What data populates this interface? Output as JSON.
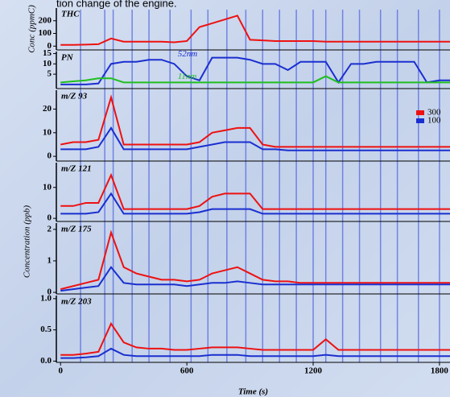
{
  "caption": "tion change of the engine.",
  "ylabel": "Concentration (ppb)",
  "chart_data": [
    {
      "type": "line",
      "title": "THC",
      "ylabel": "Conc (ppmC)",
      "x": [
        0,
        60,
        120,
        180,
        240,
        300,
        360,
        420,
        480,
        540,
        600,
        660,
        720,
        780,
        840,
        900,
        960,
        1020,
        1080,
        1140,
        1200,
        1260,
        1320,
        1380,
        1440,
        1500,
        1560,
        1620,
        1680,
        1740,
        1800,
        1860
      ],
      "xlim": [
        -20,
        1850
      ],
      "ylim": [
        -30,
        300
      ],
      "yticks": [
        0,
        100,
        200
      ],
      "series": [
        {
          "color": "#ee1111",
          "values": [
            10,
            10,
            12,
            15,
            60,
            35,
            35,
            35,
            35,
            30,
            40,
            150,
            180,
            210,
            240,
            50,
            45,
            40,
            40,
            40,
            40,
            35,
            35,
            35,
            35,
            35,
            35,
            35,
            35,
            35,
            35,
            35
          ]
        }
      ]
    },
    {
      "type": "line",
      "title": "PN",
      "legend": "inline",
      "x": [
        0,
        60,
        120,
        180,
        240,
        300,
        360,
        420,
        480,
        540,
        600,
        660,
        720,
        780,
        840,
        900,
        960,
        1020,
        1080,
        1140,
        1200,
        1260,
        1320,
        1380,
        1440,
        1500,
        1560,
        1620,
        1680,
        1740,
        1800,
        1860
      ],
      "xlim": [
        -20,
        1850
      ],
      "ylim": [
        -2,
        16
      ],
      "yticks": [
        5,
        10,
        15
      ],
      "series": [
        {
          "name": "52nm",
          "color": "#1a2fd0",
          "values": [
            0,
            0,
            0,
            0.5,
            10,
            11,
            11,
            12,
            12,
            10,
            4,
            2,
            13,
            13,
            13,
            12,
            10,
            10,
            7,
            11,
            11,
            11,
            1,
            10,
            10,
            11,
            11,
            11,
            11,
            1,
            2,
            2
          ]
        },
        {
          "name": "11nm",
          "color": "#1fbf1f",
          "values": [
            1,
            1.5,
            2,
            3,
            3,
            1,
            1,
            1,
            1,
            1,
            1,
            1,
            1,
            1,
            1,
            1,
            1,
            1,
            1,
            1,
            1,
            4,
            1,
            1,
            1,
            1,
            1,
            1,
            1,
            1,
            1,
            1
          ]
        }
      ]
    },
    {
      "type": "line",
      "title": "m/Z 93",
      "legend": "upper right",
      "x": [
        0,
        60,
        120,
        180,
        240,
        300,
        360,
        420,
        480,
        540,
        600,
        660,
        720,
        780,
        840,
        900,
        960,
        1020,
        1080,
        1140,
        1200,
        1260,
        1320,
        1380,
        1440,
        1500,
        1560,
        1620,
        1680,
        1740,
        1800,
        1860
      ],
      "xlim": [
        -20,
        1850
      ],
      "ylim": [
        -2,
        28
      ],
      "yticks": [
        0,
        10,
        20
      ],
      "series": [
        {
          "name": "300",
          "color": "#ee1111",
          "values": [
            5,
            6,
            6,
            7,
            25,
            5,
            5,
            5,
            5,
            5,
            5,
            6,
            10,
            11,
            12,
            12,
            5,
            4,
            4,
            4,
            4,
            4,
            4,
            4,
            4,
            4,
            4,
            4,
            4,
            4,
            4,
            4
          ]
        },
        {
          "name": "100",
          "color": "#1a2fd0",
          "values": [
            3,
            3,
            3,
            4,
            12,
            3,
            3,
            3,
            3,
            3,
            3,
            4,
            5,
            6,
            6,
            6,
            3,
            3,
            2.5,
            2.5,
            2.5,
            2.5,
            2.5,
            2.5,
            2.5,
            2.5,
            2.5,
            2.5,
            2.5,
            2.5,
            2.5,
            2.5
          ]
        }
      ]
    },
    {
      "type": "line",
      "title": "m/Z 121",
      "x": [
        0,
        60,
        120,
        180,
        240,
        300,
        360,
        420,
        480,
        540,
        600,
        660,
        720,
        780,
        840,
        900,
        960,
        1020,
        1080,
        1140,
        1200,
        1260,
        1320,
        1380,
        1440,
        1500,
        1560,
        1620,
        1680,
        1740,
        1800,
        1860
      ],
      "xlim": [
        -20,
        1850
      ],
      "ylim": [
        -1,
        18
      ],
      "yticks": [
        0,
        10
      ],
      "series": [
        {
          "color": "#ee1111",
          "values": [
            4,
            4,
            5,
            5,
            14,
            3,
            3,
            3,
            3,
            3,
            3,
            4,
            7,
            8,
            8,
            8,
            3,
            3,
            3,
            3,
            3,
            3,
            3,
            3,
            3,
            3,
            3,
            3,
            3,
            3,
            3,
            3
          ]
        },
        {
          "color": "#1a2fd0",
          "values": [
            1.5,
            1.5,
            1.5,
            2,
            8,
            1.5,
            1.5,
            1.5,
            1.5,
            1.5,
            1.5,
            2,
            3,
            3,
            3,
            3,
            1.5,
            1.5,
            1.5,
            1.5,
            1.5,
            1.5,
            1.5,
            1.5,
            1.5,
            1.5,
            1.5,
            1.5,
            1.5,
            1.5,
            1.5,
            1.5
          ]
        }
      ]
    },
    {
      "type": "line",
      "title": "m/Z 175",
      "x": [
        0,
        60,
        120,
        180,
        240,
        300,
        360,
        420,
        480,
        540,
        600,
        660,
        720,
        780,
        840,
        900,
        960,
        1020,
        1080,
        1140,
        1200,
        1260,
        1320,
        1380,
        1440,
        1500,
        1560,
        1620,
        1680,
        1740,
        1800,
        1860
      ],
      "xlim": [
        -20,
        1850
      ],
      "ylim": [
        -0.05,
        2.2
      ],
      "yticks": [
        0,
        1,
        2
      ],
      "series": [
        {
          "color": "#ee1111",
          "values": [
            0.1,
            0.2,
            0.3,
            0.4,
            1.9,
            0.8,
            0.6,
            0.5,
            0.4,
            0.4,
            0.35,
            0.4,
            0.6,
            0.7,
            0.8,
            0.6,
            0.4,
            0.35,
            0.35,
            0.3,
            0.3,
            0.3,
            0.3,
            0.3,
            0.3,
            0.3,
            0.3,
            0.3,
            0.3,
            0.3,
            0.3,
            0.3
          ]
        },
        {
          "color": "#1a2fd0",
          "values": [
            0.05,
            0.1,
            0.15,
            0.2,
            0.8,
            0.3,
            0.25,
            0.25,
            0.25,
            0.25,
            0.2,
            0.25,
            0.3,
            0.3,
            0.35,
            0.3,
            0.25,
            0.25,
            0.25,
            0.25,
            0.25,
            0.25,
            0.25,
            0.25,
            0.25,
            0.25,
            0.25,
            0.25,
            0.25,
            0.25,
            0.25,
            0.25
          ]
        }
      ]
    },
    {
      "type": "line",
      "title": "m/Z 203",
      "xlabel": "Time (s)",
      "x": [
        0,
        60,
        120,
        180,
        240,
        300,
        360,
        420,
        480,
        540,
        600,
        660,
        720,
        780,
        840,
        900,
        960,
        1020,
        1080,
        1140,
        1200,
        1260,
        1320,
        1380,
        1440,
        1500,
        1560,
        1620,
        1680,
        1740,
        1800,
        1860
      ],
      "xlim": [
        -20,
        1850
      ],
      "xticks": [
        0,
        600,
        1200,
        1800
      ],
      "ylim": [
        -0.02,
        1.05
      ],
      "yticks": [
        {
          "value": 0,
          "label": "0.0"
        },
        {
          "value": 0.5,
          "label": "0.5"
        },
        {
          "value": 1,
          "label": "1.0"
        }
      ],
      "series": [
        {
          "color": "#ee1111",
          "values": [
            0.1,
            0.1,
            0.12,
            0.15,
            0.6,
            0.3,
            0.22,
            0.2,
            0.2,
            0.18,
            0.18,
            0.2,
            0.22,
            0.22,
            0.22,
            0.2,
            0.18,
            0.18,
            0.18,
            0.18,
            0.18,
            0.35,
            0.18,
            0.18,
            0.18,
            0.18,
            0.18,
            0.18,
            0.18,
            0.18,
            0.18,
            0.18
          ]
        },
        {
          "color": "#1a2fd0",
          "values": [
            0.05,
            0.05,
            0.06,
            0.08,
            0.2,
            0.1,
            0.08,
            0.08,
            0.08,
            0.08,
            0.08,
            0.08,
            0.1,
            0.1,
            0.1,
            0.08,
            0.08,
            0.08,
            0.08,
            0.08,
            0.08,
            0.1,
            0.08,
            0.08,
            0.08,
            0.08,
            0.08,
            0.08,
            0.08,
            0.08,
            0.08,
            0.08
          ]
        }
      ]
    }
  ]
}
